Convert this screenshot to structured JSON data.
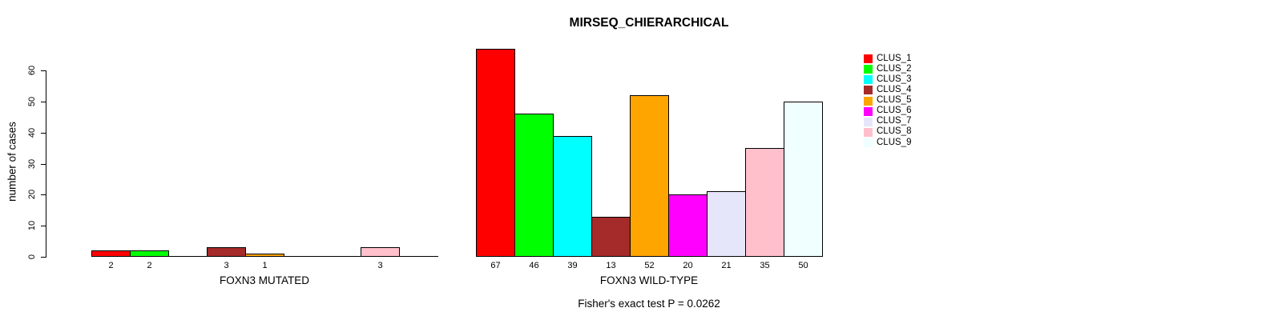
{
  "title": "MIRSEQ_CHIERARCHICAL",
  "footnote": "Fisher's exact test P = 0.0262",
  "palette": [
    "#FF0000",
    "#00FF00",
    "#00FFFF",
    "#A52A2A",
    "#FFA500",
    "#FF00FF",
    "#E6E6FA",
    "#FFC0CB",
    "#F0FFFF"
  ],
  "legend": {
    "position": "right",
    "items": [
      {
        "label": "CLUS_1",
        "color": "#FF0000"
      },
      {
        "label": "CLUS_2",
        "color": "#00FF00"
      },
      {
        "label": "CLUS_3",
        "color": "#00FFFF"
      },
      {
        "label": "CLUS_4",
        "color": "#A52A2A"
      },
      {
        "label": "CLUS_5",
        "color": "#FFA500"
      },
      {
        "label": "CLUS_6",
        "color": "#FF00FF"
      },
      {
        "label": "CLUS_7",
        "color": "#E6E6FA"
      },
      {
        "label": "CLUS_8",
        "color": "#FFC0CB"
      },
      {
        "label": "CLUS_9",
        "color": "#F0FFFF"
      }
    ]
  },
  "chart_data": [
    {
      "type": "bar",
      "xlabel": "FOXN3 MUTATED",
      "ylabel": "number of cases",
      "ylim": [
        0,
        60
      ],
      "yticks": [
        0,
        10,
        20,
        30,
        40,
        50,
        60
      ],
      "grid": false,
      "legend_position": "outside-right",
      "categories": [
        "CLUS_1",
        "CLUS_2",
        "CLUS_3",
        "CLUS_4",
        "CLUS_5",
        "CLUS_6",
        "CLUS_7",
        "CLUS_8",
        "CLUS_9"
      ],
      "values": [
        2,
        2,
        0,
        3,
        1,
        0,
        0,
        3,
        0
      ],
      "bar_labels": [
        "2",
        "2",
        "",
        "3",
        "1",
        "",
        "",
        "3",
        ""
      ]
    },
    {
      "type": "bar",
      "xlabel": "FOXN3 WILD-TYPE",
      "ylabel": "",
      "ylim": [
        0,
        60
      ],
      "yticks": [
        0,
        10,
        20,
        30,
        40,
        50,
        60
      ],
      "grid": false,
      "categories": [
        "CLUS_1",
        "CLUS_2",
        "CLUS_3",
        "CLUS_4",
        "CLUS_5",
        "CLUS_6",
        "CLUS_7",
        "CLUS_8",
        "CLUS_9"
      ],
      "values": [
        67,
        46,
        39,
        13,
        52,
        20,
        21,
        35,
        50
      ],
      "bar_labels": [
        "67",
        "46",
        "39",
        "13",
        "52",
        "20",
        "21",
        "35",
        "50"
      ]
    }
  ]
}
